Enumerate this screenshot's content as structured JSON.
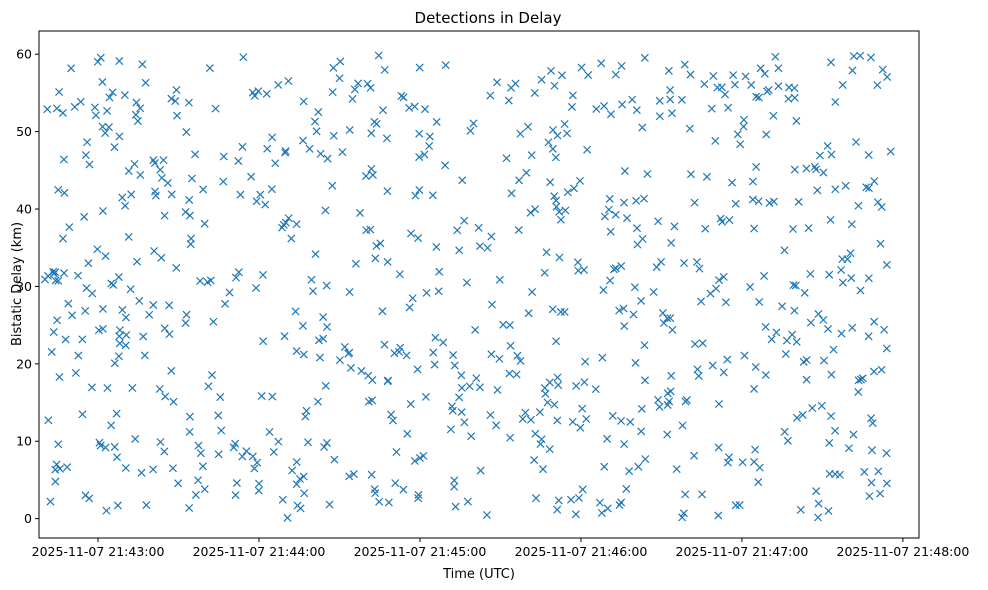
{
  "chart_data": {
    "type": "scatter",
    "title": "Detections in Delay",
    "xlabel": "Time (UTC)",
    "ylabel": "Bistatic Delay (km)",
    "x_axis_kind": "datetime",
    "xlim": [
      "2025-11-07 21:42:38",
      "2025-11-07 21:48:06"
    ],
    "ylim": [
      -2.5,
      63
    ],
    "x_ticks": [
      "2025-11-07 21:43:00",
      "2025-11-07 21:44:00",
      "2025-11-07 21:45:00",
      "2025-11-07 21:46:00",
      "2025-11-07 21:47:00",
      "2025-11-07 21:48:00"
    ],
    "y_ticks": [
      0,
      10,
      20,
      30,
      40,
      50,
      60
    ],
    "grid": false,
    "legend": "none",
    "marker": "x",
    "marker_color": "#1f77b4",
    "x_start": "2025-11-07 21:42:40",
    "x_end": "2025-11-07 21:47:56",
    "point_count": 800,
    "y_range": [
      0,
      60
    ]
  }
}
